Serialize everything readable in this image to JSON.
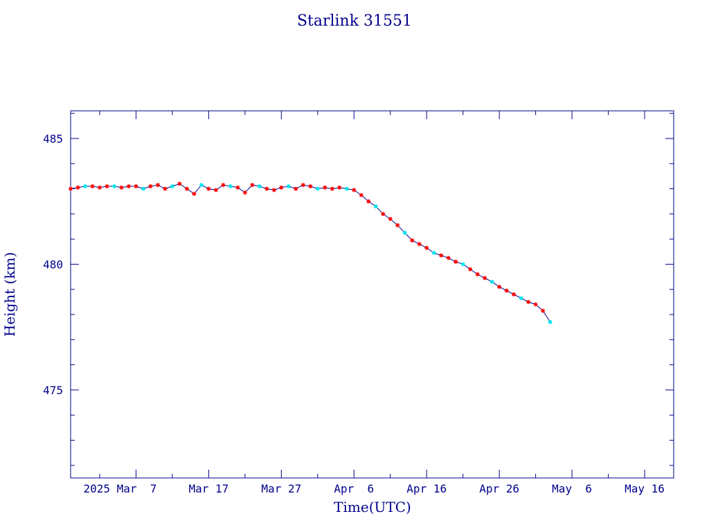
{
  "chart_data": {
    "type": "line",
    "title": "Starlink 31551",
    "xlabel": "Time(UTC)",
    "ylabel": "Height (km)",
    "x_range": [
      "2025-02-26",
      "2025-05-20"
    ],
    "ylim": [
      471.5,
      486.1
    ],
    "grid": false,
    "legend": "none",
    "x_tick_labels": [
      {
        "date": "2025-03-07",
        "label": "2025 Mar  7"
      },
      {
        "date": "2025-03-17",
        "label": "Mar 17"
      },
      {
        "date": "2025-03-27",
        "label": "Mar 27"
      },
      {
        "date": "2025-04-06",
        "label": "Apr  6"
      },
      {
        "date": "2025-04-16",
        "label": "Apr 16"
      },
      {
        "date": "2025-04-26",
        "label": "Apr 26"
      },
      {
        "date": "2025-05-06",
        "label": "May  6"
      },
      {
        "date": "2025-05-16",
        "label": "May 16"
      }
    ],
    "y_ticks": [
      475,
      480,
      485
    ],
    "series": [
      {
        "line_color": "#00008b",
        "red_marker_color": "#ff0000",
        "cyan_marker_color": "#00e5ee",
        "x": [
          "2025-02-26",
          "2025-02-27",
          "2025-02-28",
          "2025-03-01",
          "2025-03-02",
          "2025-03-03",
          "2025-03-04",
          "2025-03-05",
          "2025-03-06",
          "2025-03-07",
          "2025-03-08",
          "2025-03-09",
          "2025-03-10",
          "2025-03-11",
          "2025-03-12",
          "2025-03-13",
          "2025-03-14",
          "2025-03-15",
          "2025-03-16",
          "2025-03-17",
          "2025-03-18",
          "2025-03-19",
          "2025-03-20",
          "2025-03-21",
          "2025-03-22",
          "2025-03-23",
          "2025-03-24",
          "2025-03-25",
          "2025-03-26",
          "2025-03-27",
          "2025-03-28",
          "2025-03-29",
          "2025-03-30",
          "2025-03-31",
          "2025-04-01",
          "2025-04-02",
          "2025-04-03",
          "2025-04-04",
          "2025-04-05",
          "2025-04-06",
          "2025-04-07",
          "2025-04-08",
          "2025-04-09",
          "2025-04-10",
          "2025-04-11",
          "2025-04-12",
          "2025-04-13",
          "2025-04-14",
          "2025-04-15",
          "2025-04-16",
          "2025-04-17",
          "2025-04-18",
          "2025-04-19",
          "2025-04-20",
          "2025-04-21",
          "2025-04-22",
          "2025-04-23",
          "2025-04-24",
          "2025-04-25",
          "2025-04-26",
          "2025-04-27",
          "2025-04-28",
          "2025-04-29",
          "2025-04-30",
          "2025-05-01",
          "2025-05-02",
          "2025-05-03"
        ],
        "y": [
          483.0,
          483.05,
          483.1,
          483.1,
          483.05,
          483.1,
          483.1,
          483.05,
          483.1,
          483.1,
          483.0,
          483.1,
          483.15,
          483.0,
          483.1,
          483.2,
          483.0,
          482.8,
          483.15,
          483.0,
          482.95,
          483.15,
          483.1,
          483.05,
          482.85,
          483.15,
          483.1,
          483.0,
          482.95,
          483.05,
          483.1,
          483.0,
          483.15,
          483.1,
          483.0,
          483.05,
          483.0,
          483.05,
          483.0,
          482.95,
          482.75,
          482.5,
          482.3,
          482.0,
          481.8,
          481.55,
          481.25,
          480.95,
          480.8,
          480.65,
          480.45,
          480.35,
          480.25,
          480.1,
          480.0,
          479.8,
          479.6,
          479.45,
          479.3,
          479.1,
          478.95,
          478.8,
          478.65,
          478.5,
          478.4,
          478.15,
          477.7
        ]
      }
    ]
  }
}
